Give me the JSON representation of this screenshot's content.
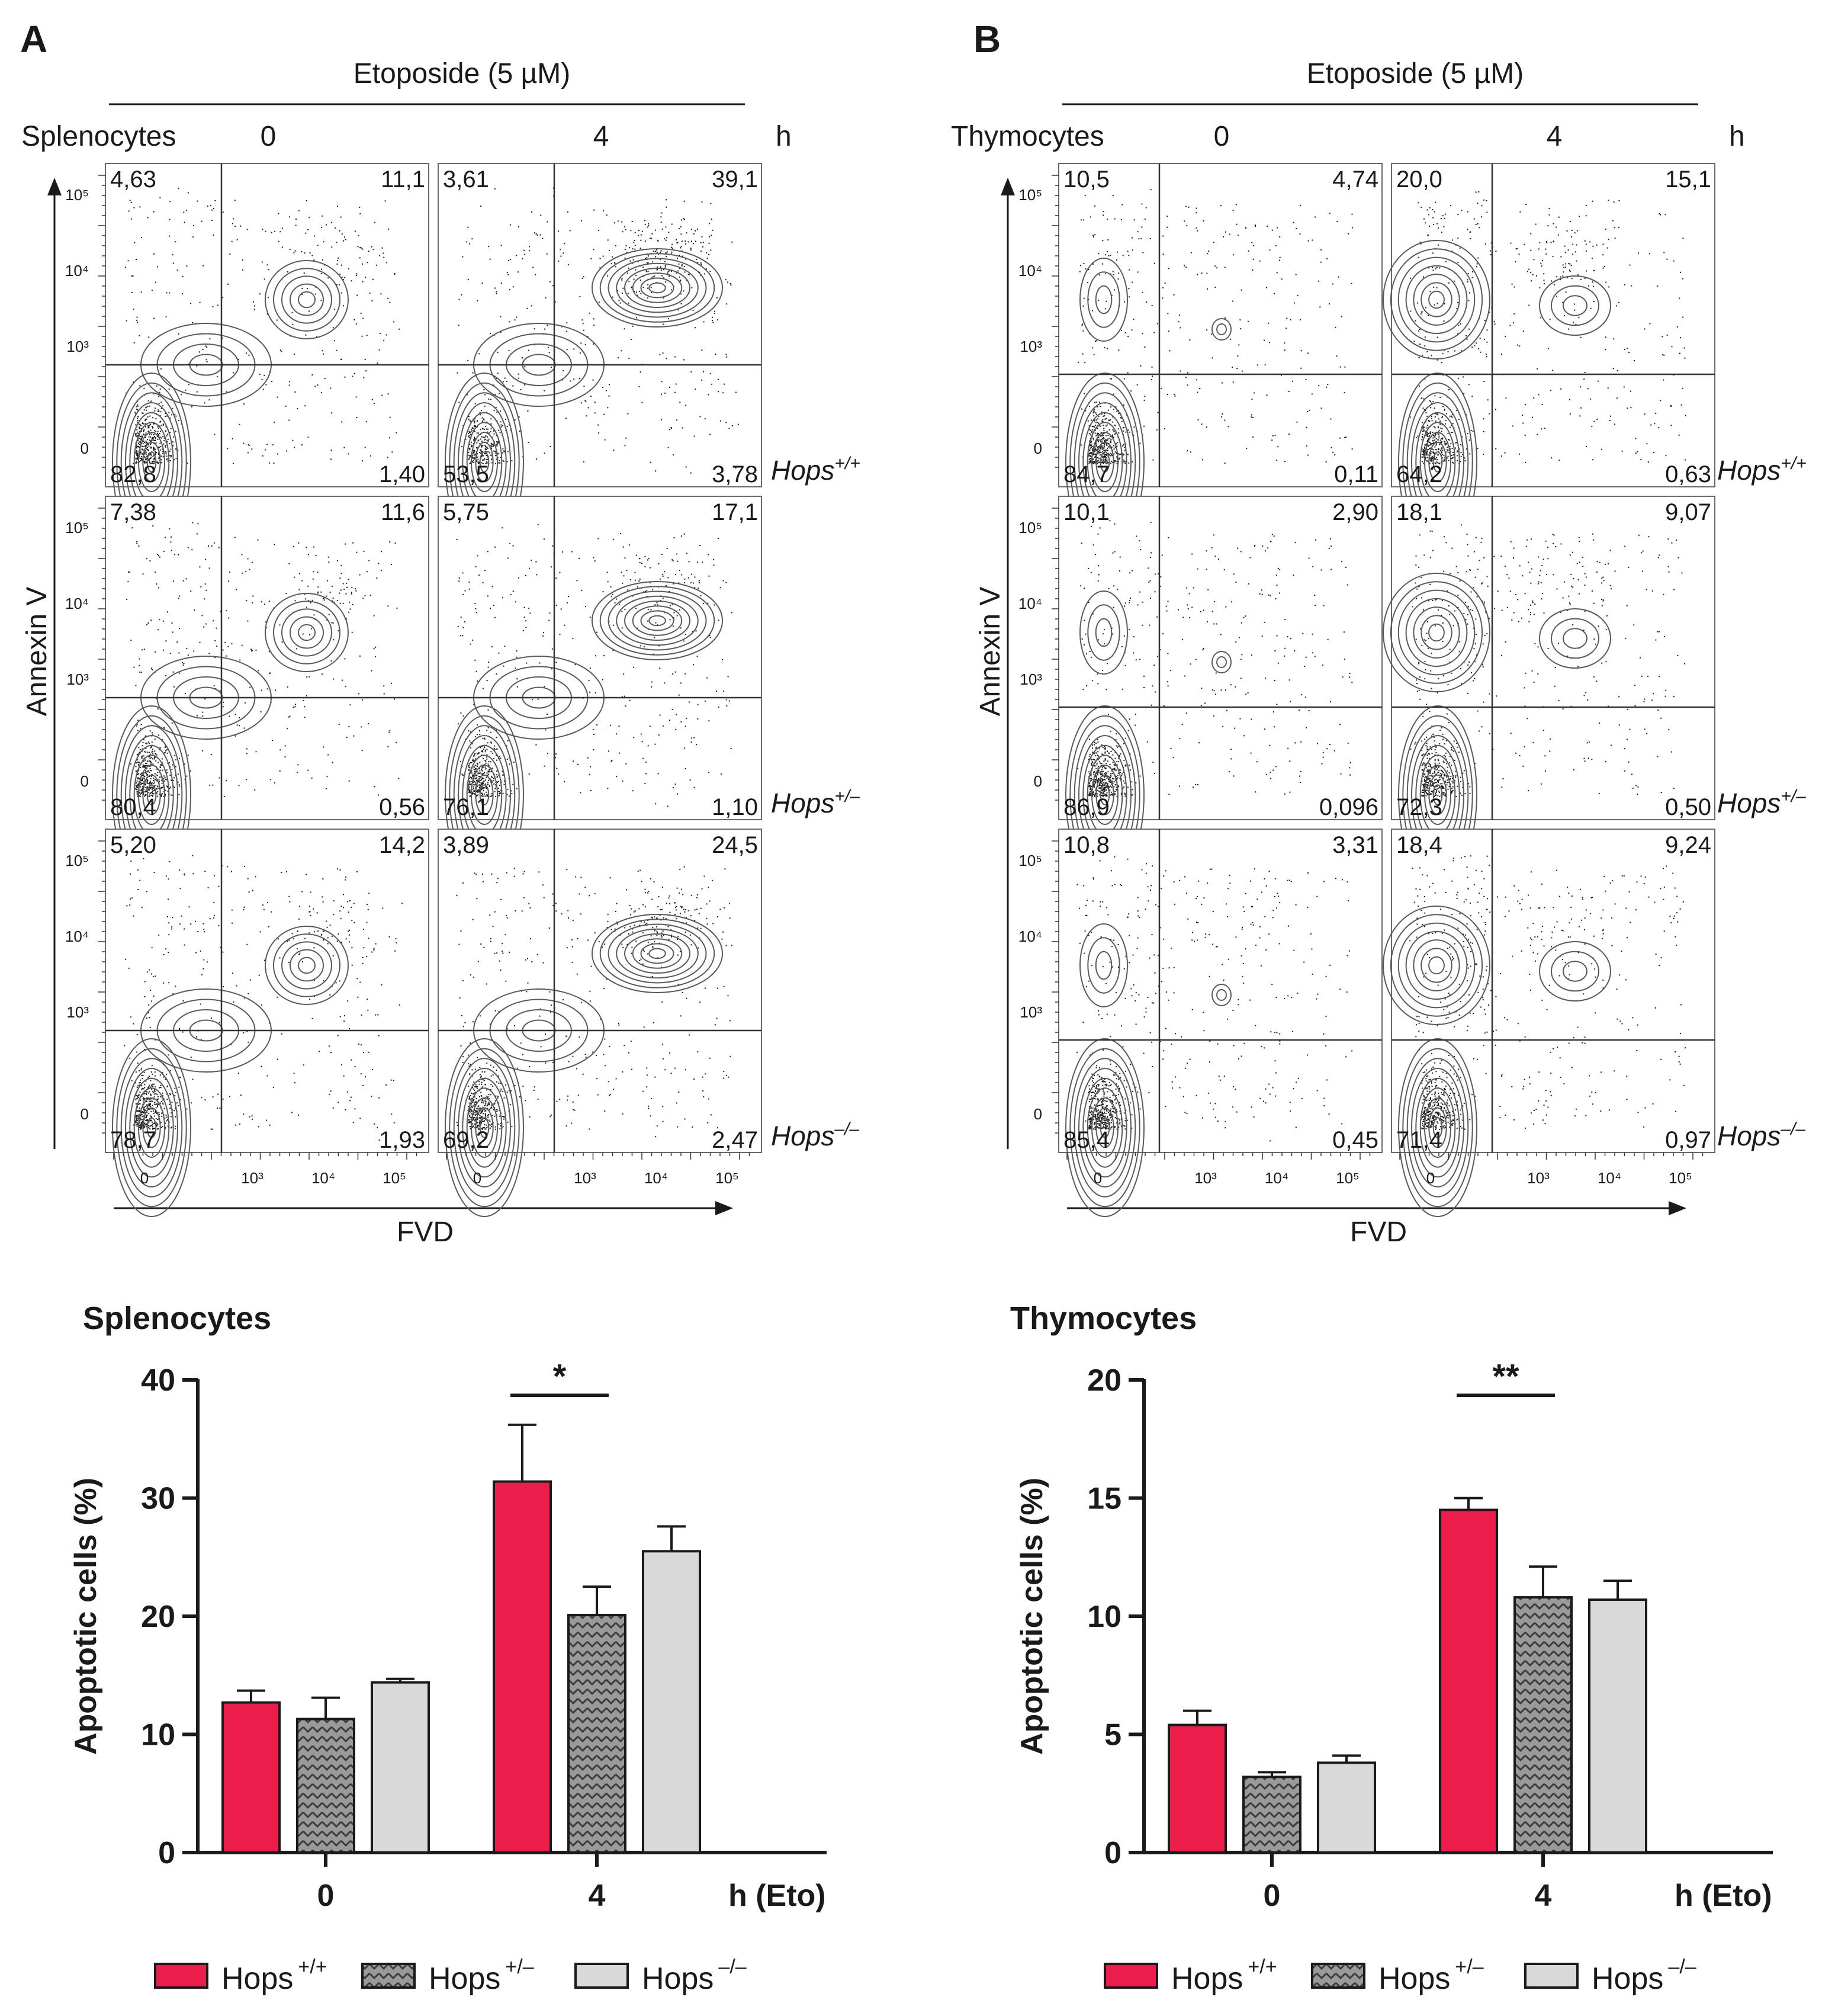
{
  "colors": {
    "wt": "#ec1c4b",
    "het": "#8c8c8c",
    "ko": "#d9d9d9",
    "axis": "#1a1a1a",
    "contour": "#555555"
  },
  "flow_panels": [
    {
      "letter": "A",
      "treatment": "Etoposide (5 µM)",
      "cell_type": "Splenocytes",
      "time_labels": [
        "0",
        "4"
      ],
      "time_unit": "h",
      "y_axis_label": "Annexin V",
      "x_axis_label": "FVD",
      "y_ticks": [
        "10⁵",
        "10⁴",
        "10³",
        "0"
      ],
      "x_ticks": [
        "0",
        "10³",
        "10⁴",
        "10⁵"
      ],
      "rows": [
        {
          "genotype": "Hops",
          "genotype_sup": "+/+",
          "plots": [
            {
              "ul": "4,63",
              "ur": "11,1",
              "ll": "82,8",
              "lr": "1,40"
            },
            {
              "ul": "3,61",
              "ur": "39,1",
              "ll": "53,5",
              "lr": "3,78"
            }
          ]
        },
        {
          "genotype": "Hops",
          "genotype_sup": "+/–",
          "plots": [
            {
              "ul": "7,38",
              "ur": "11,6",
              "ll": "80,4",
              "lr": "0,56"
            },
            {
              "ul": "5,75",
              "ur": "17,1",
              "ll": "76,1",
              "lr": "1,10"
            }
          ]
        },
        {
          "genotype": "Hops",
          "genotype_sup": "–/–",
          "plots": [
            {
              "ul": "5,20",
              "ur": "14,2",
              "ll": "78,7",
              "lr": "1,93"
            },
            {
              "ul": "3,89",
              "ur": "24,5",
              "ll": "69,2",
              "lr": "2,47"
            }
          ]
        }
      ]
    },
    {
      "letter": "B",
      "treatment": "Etoposide (5 µM)",
      "cell_type": "Thymocytes",
      "time_labels": [
        "0",
        "4"
      ],
      "time_unit": "h",
      "y_axis_label": "Annexin V",
      "x_axis_label": "FVD",
      "y_ticks": [
        "10⁵",
        "10⁴",
        "10³",
        "0"
      ],
      "x_ticks": [
        "0",
        "10³",
        "10⁴",
        "10⁵"
      ],
      "rows": [
        {
          "genotype": "Hops",
          "genotype_sup": "+/+",
          "plots": [
            {
              "ul": "10,5",
              "ur": "4,74",
              "ll": "84,7",
              "lr": "0,11"
            },
            {
              "ul": "20,0",
              "ur": "15,1",
              "ll": "64,2",
              "lr": "0,63"
            }
          ]
        },
        {
          "genotype": "Hops",
          "genotype_sup": "+/–",
          "plots": [
            {
              "ul": "10,1",
              "ur": "2,90",
              "ll": "86,9",
              "lr": "0,096"
            },
            {
              "ul": "18,1",
              "ur": "9,07",
              "ll": "72,3",
              "lr": "0,50"
            }
          ]
        },
        {
          "genotype": "Hops",
          "genotype_sup": "–/–",
          "plots": [
            {
              "ul": "10,8",
              "ur": "3,31",
              "ll": "85,4",
              "lr": "0,45"
            },
            {
              "ul": "18,4",
              "ur": "9,24",
              "ll": "71,4",
              "lr": "0,97"
            }
          ]
        }
      ]
    }
  ],
  "chart_data": [
    {
      "type": "bar",
      "title": "Splenocytes",
      "categories": [
        "0",
        "4"
      ],
      "xlabel": "h (Eto)",
      "ylabel": "Apoptotic cells (%)",
      "ylim": [
        0,
        40
      ],
      "yticks": [
        0,
        10,
        20,
        30,
        40
      ],
      "series": [
        {
          "name": "Hops",
          "sup": "+/+",
          "values": [
            12.7,
            31.4
          ],
          "errors": [
            1.0,
            4.8
          ]
        },
        {
          "name": "Hops",
          "sup": "+/–",
          "values": [
            11.3,
            20.1
          ],
          "errors": [
            1.8,
            2.4
          ]
        },
        {
          "name": "Hops",
          "sup": "–/–",
          "values": [
            14.4,
            25.5
          ],
          "errors": [
            0.3,
            2.1
          ]
        }
      ],
      "significance": {
        "category": "4",
        "from_series": 0,
        "to_series": 1,
        "label": "*"
      }
    },
    {
      "type": "bar",
      "title": "Thymocytes",
      "categories": [
        "0",
        "4"
      ],
      "xlabel": "h (Eto)",
      "ylabel": "Apoptotic cells (%)",
      "ylim": [
        0,
        20
      ],
      "yticks": [
        0,
        5,
        10,
        15,
        20
      ],
      "series": [
        {
          "name": "Hops",
          "sup": "+/+",
          "values": [
            5.4,
            14.5
          ],
          "errors": [
            0.6,
            0.5
          ]
        },
        {
          "name": "Hops",
          "sup": "+/–",
          "values": [
            3.2,
            10.8
          ],
          "errors": [
            0.2,
            1.3
          ]
        },
        {
          "name": "Hops",
          "sup": "–/–",
          "values": [
            3.8,
            10.7
          ],
          "errors": [
            0.3,
            0.8
          ]
        }
      ],
      "significance": {
        "category": "4",
        "from_series": 0,
        "to_series": 1,
        "label": "**"
      }
    }
  ]
}
